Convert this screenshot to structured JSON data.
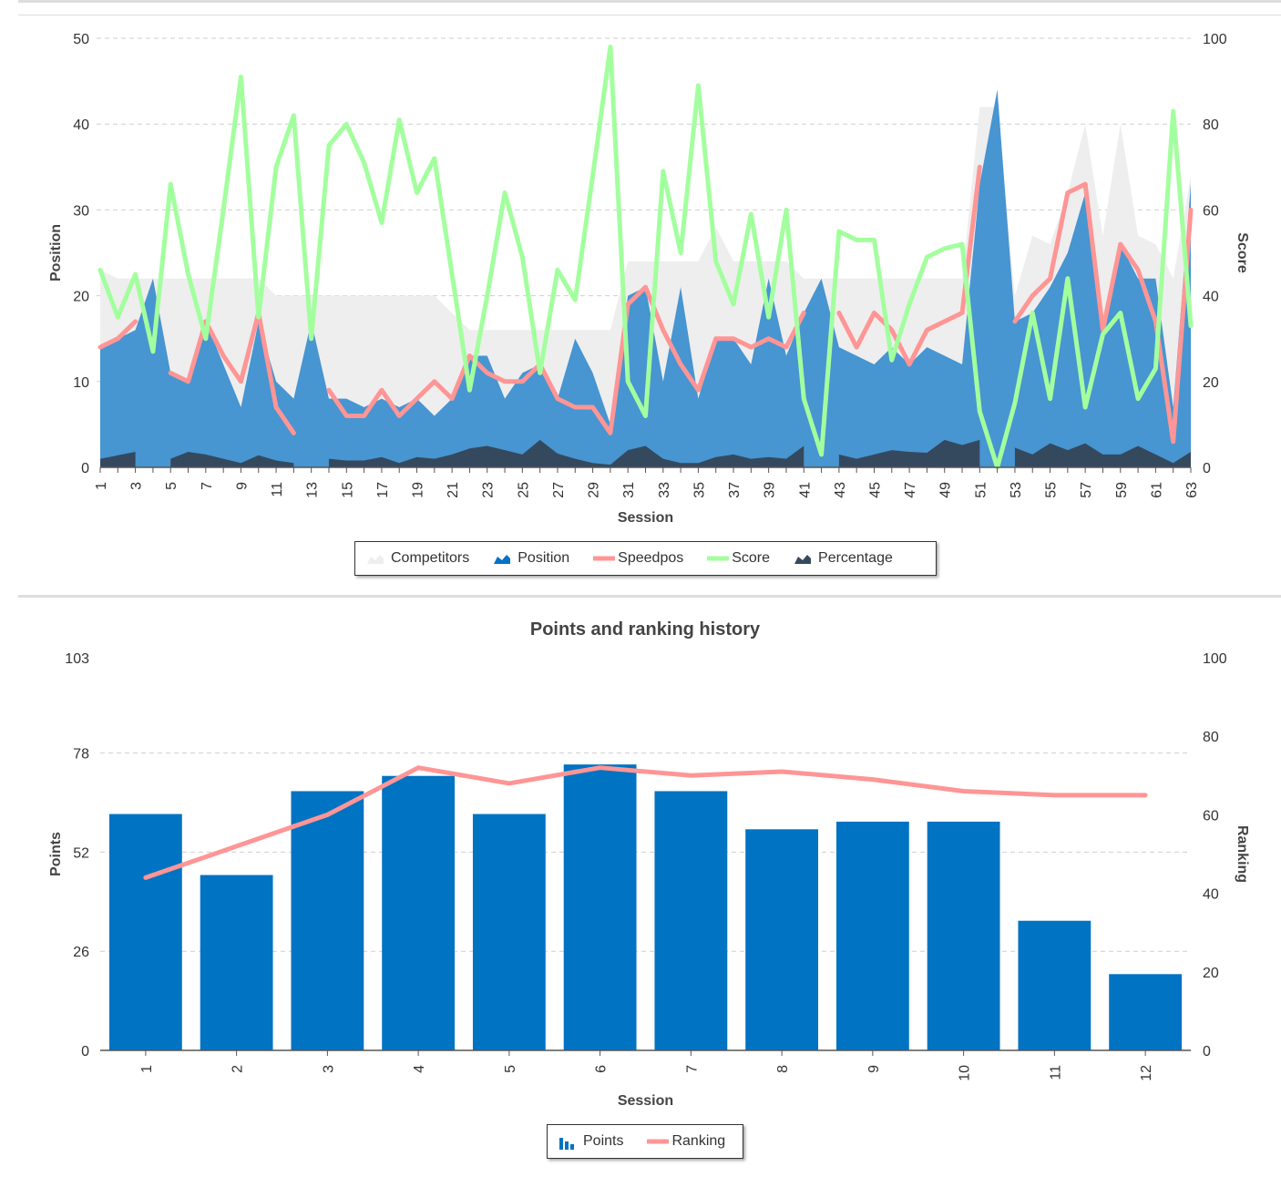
{
  "chart_data": [
    {
      "type": "area",
      "title": "",
      "xlabel": "Session",
      "ylabel": "Position",
      "y2label": "Score",
      "ylim": [
        0,
        50
      ],
      "y2lim": [
        0,
        100
      ],
      "yticks": [
        0,
        10,
        20,
        30,
        40,
        50
      ],
      "y2ticks": [
        0,
        20,
        40,
        60,
        80,
        100
      ],
      "x_tick_labels": [
        "1",
        "3",
        "5",
        "7",
        "9",
        "11",
        "13",
        "15",
        "17",
        "19",
        "21",
        "23",
        "25",
        "27",
        "29",
        "31",
        "33",
        "35",
        "37",
        "39",
        "41",
        "43",
        "45",
        "47",
        "49",
        "51",
        "53",
        "55",
        "57",
        "59",
        "61",
        "63"
      ],
      "x": [
        1,
        2,
        3,
        4,
        5,
        6,
        7,
        8,
        9,
        10,
        11,
        12,
        13,
        14,
        15,
        16,
        17,
        18,
        19,
        20,
        21,
        22,
        23,
        24,
        25,
        26,
        27,
        28,
        29,
        30,
        31,
        32,
        33,
        34,
        35,
        36,
        37,
        38,
        39,
        40,
        41,
        42,
        43,
        44,
        45,
        46,
        47,
        48,
        49,
        50,
        51,
        52,
        53,
        54,
        55,
        56,
        57,
        58,
        59,
        60,
        61,
        62,
        63
      ],
      "legend_position": "bottom-center",
      "grid": true,
      "series": [
        {
          "name": "Competitors",
          "kind": "area",
          "axis": "left",
          "color": "#eeeeee",
          "values": [
            23,
            22,
            22,
            22,
            22,
            22,
            22,
            22,
            22,
            22,
            20,
            20,
            20,
            20,
            20,
            20,
            20,
            20,
            20,
            20,
            18,
            16,
            16,
            16,
            16,
            16,
            16,
            16,
            16,
            16,
            24,
            24,
            24,
            24,
            24,
            28,
            24,
            24,
            24,
            24,
            22,
            22,
            22,
            22,
            22,
            22,
            22,
            22,
            22,
            22,
            42,
            42,
            20,
            27,
            26,
            32,
            40,
            27,
            40,
            27,
            26,
            22,
            34
          ]
        },
        {
          "name": "Position",
          "kind": "area",
          "axis": "left",
          "color": "#4795d1",
          "values": [
            14,
            15,
            16,
            22,
            11,
            10,
            17,
            12,
            7,
            17,
            10,
            8,
            17,
            8,
            8,
            7,
            8,
            7,
            8,
            6,
            8,
            13,
            13,
            8,
            11,
            12,
            8,
            15,
            11,
            5,
            20,
            21,
            10,
            21,
            8,
            15,
            15,
            12,
            22,
            13,
            18,
            22,
            14,
            13,
            12,
            14,
            12,
            14,
            13,
            12,
            33,
            44,
            17,
            18,
            21,
            25,
            32,
            15,
            26,
            22,
            22,
            7,
            33
          ]
        },
        {
          "name": "Speedpos",
          "kind": "line",
          "axis": "left",
          "color": "#ff9595",
          "values": [
            14,
            15,
            17,
            null,
            11,
            10,
            17,
            13,
            10,
            18,
            7,
            4,
            null,
            9,
            6,
            6,
            9,
            6,
            8,
            10,
            8,
            13,
            11,
            10,
            10,
            12,
            8,
            7,
            7,
            4,
            19,
            21,
            16,
            12,
            9,
            15,
            15,
            14,
            15,
            14,
            18,
            null,
            18,
            14,
            18,
            16,
            12,
            16,
            17,
            18,
            35,
            null,
            17,
            20,
            22,
            32,
            33,
            16,
            26,
            23,
            17,
            3,
            30
          ]
        },
        {
          "name": "Score",
          "kind": "line",
          "axis": "right",
          "color": "#a3ff9e",
          "values": [
            46,
            35,
            45,
            27,
            66,
            45,
            30,
            60,
            91,
            35,
            70,
            82,
            30,
            75,
            80,
            71,
            57,
            81,
            64,
            72,
            45,
            18,
            40,
            64,
            49,
            22,
            46,
            39,
            68,
            98,
            20,
            12,
            69,
            50,
            89,
            48,
            38,
            59,
            35,
            60,
            16,
            3,
            55,
            53,
            53,
            25,
            38,
            49,
            51,
            52,
            13,
            0,
            15,
            36,
            16,
            44,
            14,
            31,
            36,
            16,
            23,
            83,
            33
          ]
        },
        {
          "name": "Percentage",
          "kind": "area",
          "axis": "left",
          "color": "#34495e",
          "values": [
            1,
            1.4,
            1.8,
            0,
            1,
            1.8,
            1.5,
            1,
            0.5,
            1.4,
            0.8,
            0.5,
            0,
            1,
            0.8,
            0.8,
            1.2,
            0.5,
            1.2,
            1,
            1.5,
            2.2,
            2.5,
            2,
            1.5,
            3.2,
            1.6,
            1,
            0.5,
            0.3,
            2,
            2.5,
            1,
            0.5,
            0.5,
            1.2,
            1.5,
            1,
            1.2,
            1,
            2.5,
            0,
            1.5,
            1,
            1.5,
            2,
            1.8,
            1.7,
            3.2,
            2.6,
            3.2,
            0,
            2.3,
            1.5,
            2.8,
            2,
            2.8,
            1.5,
            1.5,
            2.5,
            1.5,
            0.5,
            1.8
          ]
        }
      ]
    },
    {
      "type": "bar",
      "title": "Points and ranking history",
      "xlabel": "Session",
      "ylabel": "Points",
      "y2label": "Ranking",
      "ylim": [
        0,
        103
      ],
      "y2lim": [
        0,
        100
      ],
      "yticks": [
        0,
        26,
        52,
        78,
        103
      ],
      "y2ticks": [
        0,
        20,
        40,
        60,
        80,
        100
      ],
      "categories": [
        "1",
        "2",
        "3",
        "4",
        "5",
        "6",
        "7",
        "8",
        "9",
        "10",
        "11",
        "12"
      ],
      "legend_position": "bottom-center",
      "grid": true,
      "series": [
        {
          "name": "Points",
          "kind": "bar",
          "axis": "left",
          "color": "#0073c2",
          "values": [
            62,
            46,
            68,
            72,
            62,
            75,
            68,
            58,
            60,
            60,
            34,
            20
          ]
        },
        {
          "name": "Ranking",
          "kind": "line",
          "axis": "right",
          "color": "#ff9595",
          "values": [
            44,
            52,
            60,
            72,
            68,
            72,
            70,
            71,
            69,
            66,
            65,
            65
          ]
        }
      ]
    }
  ]
}
